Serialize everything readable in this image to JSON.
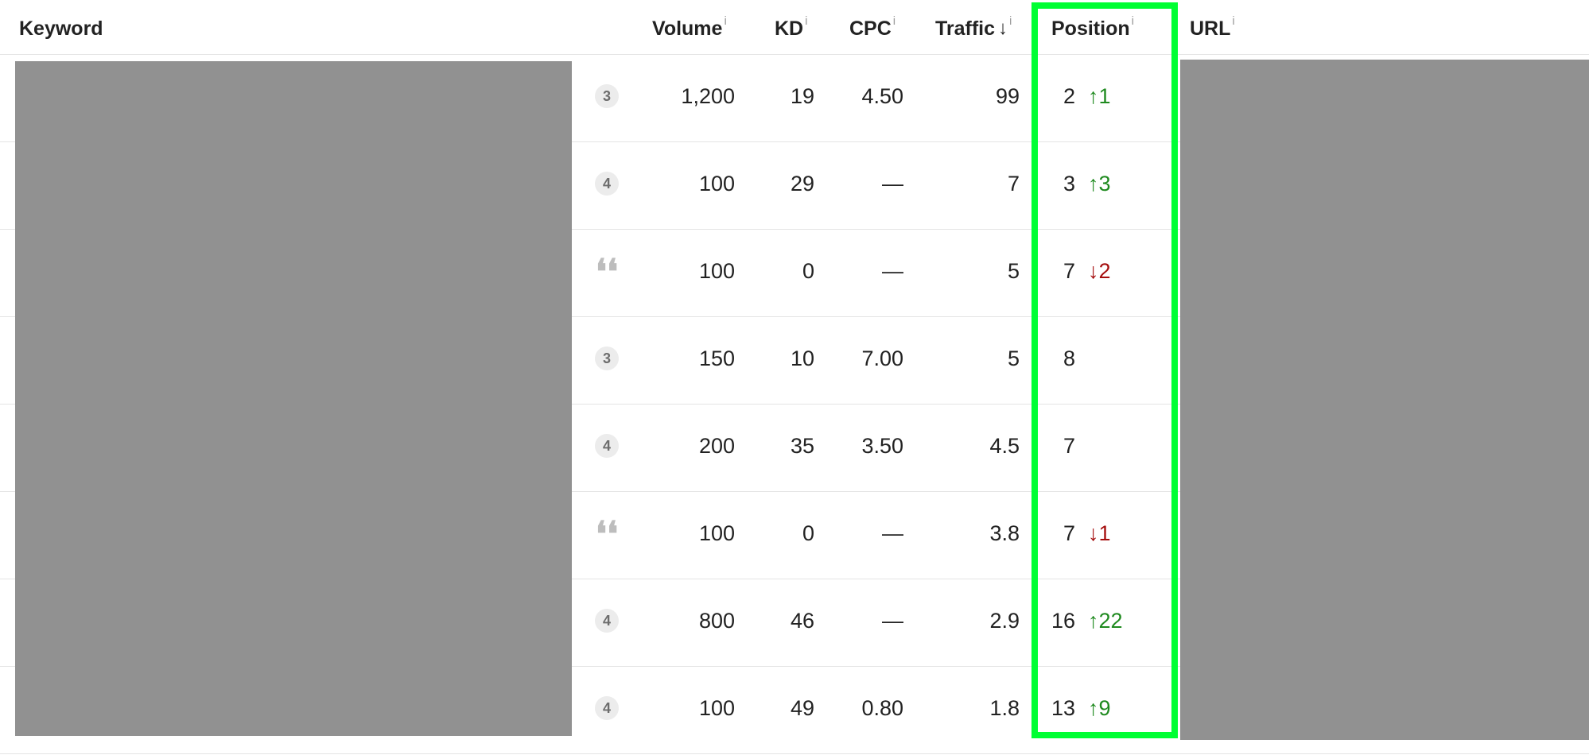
{
  "header": {
    "keyword": "Keyword",
    "volume": "Volume",
    "kd": "KD",
    "cpc": "CPC",
    "traffic": "Traffic",
    "position": "Position",
    "url": "URL",
    "info_glyph": "i",
    "sort_glyph": "↓"
  },
  "rows": [
    {
      "intent": "3",
      "intent_icon": "count-badge",
      "volume": "1,200",
      "kd": "19",
      "cpc": "4.50",
      "traffic": "99",
      "position": "2",
      "change": "↑1",
      "change_dir": "up"
    },
    {
      "intent": "4",
      "intent_icon": "count-badge",
      "volume": "100",
      "kd": "29",
      "cpc": "—",
      "traffic": "7",
      "position": "3",
      "change": "↑3",
      "change_dir": "up"
    },
    {
      "intent": "",
      "intent_icon": "quote-icon",
      "volume": "100",
      "kd": "0",
      "cpc": "—",
      "traffic": "5",
      "position": "7",
      "change": "↓2",
      "change_dir": "down"
    },
    {
      "intent": "3",
      "intent_icon": "count-badge",
      "volume": "150",
      "kd": "10",
      "cpc": "7.00",
      "traffic": "5",
      "position": "8",
      "change": "",
      "change_dir": "none"
    },
    {
      "intent": "4",
      "intent_icon": "count-badge",
      "volume": "200",
      "kd": "35",
      "cpc": "3.50",
      "traffic": "4.5",
      "position": "7",
      "change": "",
      "change_dir": "none"
    },
    {
      "intent": "",
      "intent_icon": "quote-icon",
      "volume": "100",
      "kd": "0",
      "cpc": "—",
      "traffic": "3.8",
      "position": "7",
      "change": "↓1",
      "change_dir": "down"
    },
    {
      "intent": "4",
      "intent_icon": "count-badge",
      "volume": "800",
      "kd": "46",
      "cpc": "—",
      "traffic": "2.9",
      "position": "16",
      "change": "↑22",
      "change_dir": "up"
    },
    {
      "intent": "4",
      "intent_icon": "count-badge",
      "volume": "100",
      "kd": "49",
      "cpc": "0.80",
      "traffic": "1.8",
      "position": "13",
      "change": "↑9",
      "change_dir": "up"
    }
  ],
  "quote_glyph": "❛❛",
  "colors": {
    "highlight": "#00ff33",
    "redaction": "#919191",
    "change_up": "#1f8a1f",
    "change_down": "#a50e0e"
  }
}
